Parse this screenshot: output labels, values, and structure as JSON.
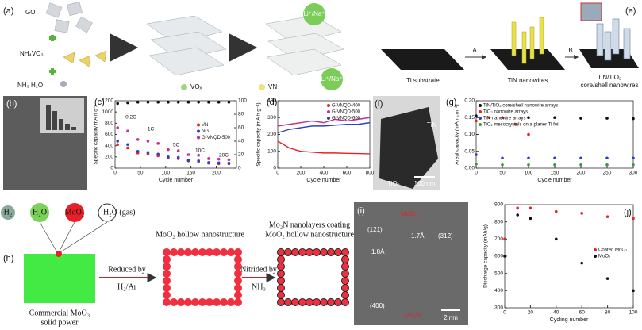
{
  "panel_a": {
    "label": "(a)",
    "go": "GO",
    "nh4vo3": "NH₄VO₃",
    "nh3": "NH₃ H₂O",
    "vox": "VOₓ",
    "vn": "VN",
    "ion_top": "Li⁺/Na⁺",
    "ion_bottom": "Li⁺/Na⁺"
  },
  "panel_b": {
    "label": "(b)"
  },
  "panel_e": {
    "label": "(e)",
    "substrate": "Ti substrate",
    "step_a": "A",
    "nanowires": "TiN nanowires",
    "step_b": "B",
    "core_shell_1": "TiN/TiO₂",
    "core_shell_2": "core/shell nanowires"
  },
  "panel_f": {
    "label": "(f)",
    "tin": "TiN",
    "tio2": "TiO₂",
    "scale": "100 nm"
  },
  "panel_h": {
    "label": "(h)",
    "h2": "H₂",
    "h2o": "H₂O",
    "moo2": "MoO₂",
    "gas": "H₂O (gas)",
    "commercial_1": "Commercial MoO₃",
    "commercial_2": "solid power",
    "reduced": "Reduced by",
    "h2ar": "H₂/Ar",
    "hollow": "MoO₂ hollow nanostructure",
    "nitrided": "Nitrided by",
    "nh3": "NH₃",
    "coating_1": "Mo₂N nanolayers coating",
    "coating_2": "MoO₂ hollow nanostructure"
  },
  "panel_i": {
    "label": "(i)",
    "moo2": "MoO₂",
    "p121": "(121)",
    "d18": "1.8Å",
    "d17": "1.7Å",
    "p312": "(312)",
    "p400": "(400)",
    "mo2n": "Mo₂N",
    "scale": "2 nm"
  },
  "chart_data": [
    {
      "type": "scatter",
      "label": "(c)",
      "x": [
        5,
        25,
        45,
        65,
        85,
        105,
        125,
        145,
        165,
        185,
        205,
        225
      ],
      "xlim": [
        0,
        240
      ],
      "xticks": [
        0,
        50,
        100,
        150,
        200
      ],
      "ylim": [
        0,
        1200
      ],
      "yticks": [
        0,
        200,
        400,
        600,
        800,
        1000,
        1200
      ],
      "y2lim": [
        0,
        100
      ],
      "y2ticks": [
        0,
        20,
        40,
        60,
        80,
        100
      ],
      "xlabel": "Cycle number",
      "ylabel": "Specific capacity mA h g⁻¹",
      "legend": "center right",
      "annotations": [
        "0.2C",
        "1C",
        "5C",
        "10C",
        "20C"
      ],
      "series": [
        {
          "name": "VN",
          "color": "#e8202a",
          "values": [
            420,
            360,
            270,
            250,
            220,
            180,
            170,
            130,
            120,
            90,
            80,
            80
          ]
        },
        {
          "name": "NG",
          "color": "#2b3fc9",
          "values": [
            480,
            420,
            300,
            280,
            250,
            200,
            190,
            140,
            130,
            100,
            95,
            90
          ]
        },
        {
          "name": "G-VNQD-500",
          "color": "#c0309a",
          "values": [
            720,
            660,
            510,
            480,
            440,
            330,
            310,
            240,
            230,
            170,
            160,
            150
          ]
        },
        {
          "color": "#111111",
          "axis": "y2",
          "values": [
            96,
            97,
            98,
            98,
            98,
            98,
            98,
            98,
            98,
            98,
            98,
            98
          ]
        }
      ]
    },
    {
      "type": "line",
      "label": "(d)",
      "x": [
        0,
        100,
        200,
        300,
        400,
        500,
        600,
        700,
        800
      ],
      "xlim": [
        0,
        800
      ],
      "xticks": [
        0,
        200,
        400,
        600,
        800
      ],
      "ylim": [
        0,
        400
      ],
      "yticks": [
        0,
        100,
        200,
        300,
        400
      ],
      "xlabel": "Cycle number",
      "ylabel": "Specific capacity (mA h g⁻¹)",
      "legend": "upper right",
      "series": [
        {
          "name": "G-VNQD-400",
          "color": "#e8202a",
          "values": [
            160,
            120,
            100,
            95,
            90,
            90,
            88,
            87,
            85
          ]
        },
        {
          "name": "G-VNQD-500",
          "color": "#c0309a",
          "values": [
            250,
            260,
            270,
            280,
            270,
            290,
            280,
            290,
            300
          ]
        },
        {
          "name": "G-VNQD-600",
          "color": "#2b3fc9",
          "values": [
            210,
            230,
            240,
            250,
            250,
            255,
            260,
            260,
            270
          ]
        }
      ]
    },
    {
      "type": "scatter",
      "label": "(g)",
      "xlim": [
        0,
        300
      ],
      "xticks": [
        0,
        50,
        100,
        150,
        200,
        250,
        300
      ],
      "ylim": [
        0,
        0.2
      ],
      "yticks": [
        {
          "value": 0,
          "label": "0.00"
        },
        {
          "value": 0.05,
          "label": "0.05"
        },
        {
          "value": 0.1,
          "label": "0.10"
        },
        {
          "value": 0.15,
          "label": "0.15"
        },
        {
          "value": 0.2,
          "label": "0.20"
        }
      ],
      "xlabel": "Cycle number",
      "ylabel": "Areal capacity (mAh cm⁻²)",
      "legend": "upper left",
      "series": [
        {
          "name": "TiN/TiO₂ core/shell nanowire arrays",
          "color": "#111111",
          "x": [
            0,
            50,
            100,
            150,
            200,
            250,
            300
          ],
          "values": [
            0.155,
            0.15,
            0.15,
            0.15,
            0.148,
            0.148,
            0.147
          ]
        },
        {
          "name": "TiO₂ nanowire arrays",
          "color": "#e8202a",
          "x": [
            0,
            25,
            50,
            75,
            100
          ],
          "values": [
            0.14,
            0.15,
            0.15,
            0.13,
            0.1
          ]
        },
        {
          "name": "TiN nanowire arrays",
          "color": "#2b3fc9",
          "x": [
            0,
            50,
            100,
            150,
            200,
            250,
            300
          ],
          "values": [
            0.04,
            0.03,
            0.03,
            0.03,
            0.03,
            0.03,
            0.03
          ]
        },
        {
          "name": "TiO₂ mesocrystals on a planer Ti foil",
          "color": "#3a9a3a",
          "x": [
            0,
            50,
            100,
            150,
            200,
            250,
            300
          ],
          "values": [
            0.012,
            0.01,
            0.01,
            0.01,
            0.01,
            0.01,
            0.01
          ]
        }
      ]
    },
    {
      "type": "scatter",
      "label": "(j)",
      "x": [
        0,
        10,
        20,
        40,
        60,
        80,
        100
      ],
      "xlim": [
        0,
        100
      ],
      "xticks": [
        0,
        20,
        40,
        60,
        80,
        100
      ],
      "ylim": [
        300,
        900
      ],
      "yticks": [
        300,
        400,
        500,
        600,
        700,
        800,
        900
      ],
      "xlabel": "Cycling number",
      "ylabel": "Discharge capacity (mAh/g)",
      "legend": "center right",
      "series": [
        {
          "name": "Coated MoO₂",
          "color": "#e8202a",
          "values": [
            700,
            880,
            880,
            860,
            850,
            830,
            820
          ]
        },
        {
          "name": "MoO₂",
          "color": "#111111",
          "values": [
            600,
            840,
            820,
            700,
            560,
            470,
            400
          ]
        }
      ]
    }
  ]
}
